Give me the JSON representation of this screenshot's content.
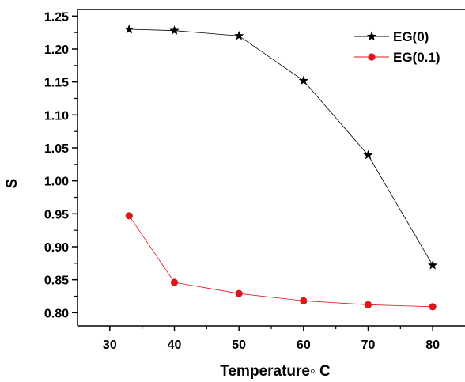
{
  "chart_data": {
    "type": "line",
    "xlabel": "Temperature◦ C",
    "ylabel": "S",
    "xlim": [
      25,
      85
    ],
    "ylim": [
      0.78,
      1.26
    ],
    "xticks": [
      30,
      40,
      50,
      60,
      70,
      80
    ],
    "yticks": [
      0.8,
      0.85,
      0.9,
      0.95,
      1.0,
      1.05,
      1.1,
      1.15,
      1.2,
      1.25
    ],
    "x": [
      33,
      40,
      50,
      60,
      70,
      80
    ],
    "grid": false,
    "legend": "top-right",
    "series": [
      {
        "name": "EG(0)",
        "color": "#000000",
        "marker": "star",
        "values": [
          1.23,
          1.228,
          1.22,
          1.152,
          1.039,
          0.872
        ]
      },
      {
        "name": "EG(0.1)",
        "color": "#e0141b",
        "marker": "circle",
        "values": [
          0.947,
          0.846,
          0.829,
          0.818,
          0.812,
          0.809
        ]
      }
    ]
  }
}
